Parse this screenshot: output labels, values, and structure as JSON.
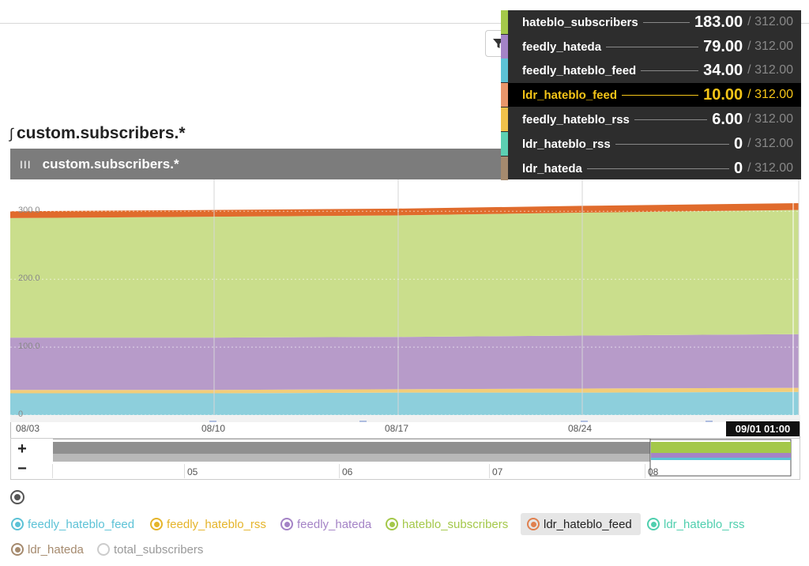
{
  "page": {
    "title_glyph": "∫",
    "title": "custom.subscribers.*",
    "panel_title": "custom.subscribers.*",
    "panel_bars": "III",
    "time_badge": "09/01 01:00",
    "nav_zoom_in": "+",
    "nav_zoom_out": "−",
    "nav_ticks": [
      "05",
      "06",
      "07",
      "08"
    ]
  },
  "tooltip": [
    {
      "name": "hateblo_subscribers",
      "value": "183.00",
      "total": "/ 312.00",
      "color": "#a4c84a",
      "highlight": false
    },
    {
      "name": "feedly_hateda",
      "value": "79.00",
      "total": "/ 312.00",
      "color": "#a483c6",
      "highlight": false
    },
    {
      "name": "feedly_hateblo_feed",
      "value": "34.00",
      "total": "/ 312.00",
      "color": "#5cc2d6",
      "highlight": false
    },
    {
      "name": "ldr_hateblo_feed",
      "value": "10.00",
      "total": "/ 312.00",
      "color": "#e8956a",
      "highlight": true
    },
    {
      "name": "feedly_hateblo_rss",
      "value": "6.00",
      "total": "/ 312.00",
      "color": "#f0c14a",
      "highlight": false
    },
    {
      "name": "ldr_hateblo_rss",
      "value": "0",
      "total": "/ 312.00",
      "color": "#5cd0b2",
      "highlight": false
    },
    {
      "name": "ldr_hateda",
      "value": "0",
      "total": "/ 312.00",
      "color": "#a58a6e",
      "highlight": false
    }
  ],
  "legend": [
    {
      "name": "feedly_hateblo_feed",
      "color": "#5cc2d6",
      "selected": false
    },
    {
      "name": "feedly_hateblo_rss",
      "color": "#e5b42a",
      "selected": false
    },
    {
      "name": "feedly_hateda",
      "color": "#a483c6",
      "selected": false
    },
    {
      "name": "hateblo_subscribers",
      "color": "#a4c84a",
      "selected": false
    },
    {
      "name": "ldr_hateblo_feed",
      "color": "#e0804f",
      "selected": true
    },
    {
      "name": "ldr_hateblo_rss",
      "color": "#4fcfae",
      "selected": false
    },
    {
      "name": "ldr_hateda",
      "color": "#a58a6e",
      "selected": false
    },
    {
      "name": "total_subscribers",
      "color": "#cccccc",
      "selected": false
    }
  ],
  "chart_data": {
    "type": "area",
    "stacked": true,
    "x": [
      "08/03",
      "08/10",
      "08/17",
      "08/24",
      "09/01"
    ],
    "x_tick_labels": [
      "08/03",
      "08/10",
      "08/17",
      "08/24"
    ],
    "y_tick_labels": [
      "0",
      "100.0",
      "200.0",
      "300.0"
    ],
    "ylim": [
      0,
      312
    ],
    "grid": true,
    "series": [
      {
        "name": "feedly_hateblo_feed",
        "color": "#8dcfdc",
        "values": [
          32,
          32,
          33,
          33,
          34
        ]
      },
      {
        "name": "feedly_hateblo_rss",
        "color": "#f2cd79",
        "values": [
          5,
          5,
          5,
          6,
          6
        ]
      },
      {
        "name": "feedly_hateda",
        "color": "#b79bc9",
        "values": [
          77,
          77,
          77,
          78,
          79
        ]
      },
      {
        "name": "hateblo_subscribers",
        "color": "#cade8c",
        "values": [
          176,
          178,
          179,
          181,
          183
        ]
      },
      {
        "name": "ldr_hateblo_feed",
        "color": "#e06b2c",
        "values": [
          10,
          10,
          10,
          10,
          10
        ]
      },
      {
        "name": "ldr_hateblo_rss",
        "color": "#5cd0b2",
        "values": [
          0,
          0,
          0,
          0,
          0
        ]
      },
      {
        "name": "ldr_hateda",
        "color": "#a58a6e",
        "values": [
          0,
          0,
          0,
          0,
          0
        ]
      }
    ]
  }
}
